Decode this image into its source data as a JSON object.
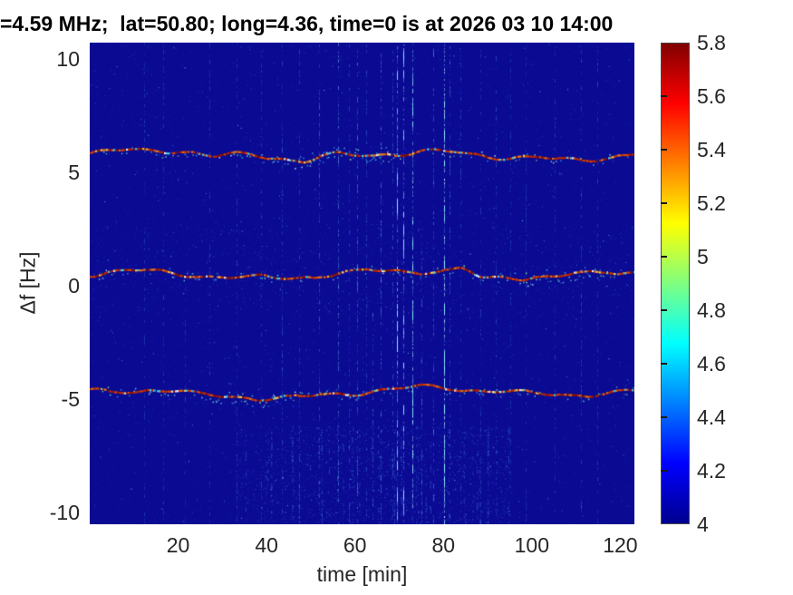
{
  "chart_data": {
    "type": "heatmap",
    "subtype": "doppler-spectrogram",
    "title": "=4.59 MHz;  lat=50.80; long=4.36, time=0 is at 2026 03 10 14:00",
    "xlabel": "time [min]",
    "ylabel": "Δf [Hz]",
    "x_range_min": [
      0,
      123.2
    ],
    "y_range_hz": [
      -10.5,
      10.7
    ],
    "x_ticks": [
      20,
      40,
      60,
      80,
      100,
      120
    ],
    "y_ticks": [
      10,
      5,
      0,
      -5,
      -10
    ],
    "grid": false,
    "background_value": 4.0,
    "background_color": "#0a0a93",
    "colorbar": {
      "position": "right",
      "min": 4,
      "max": 5.8,
      "ticks": [
        5.8,
        5.6,
        5.4,
        5.2,
        5,
        4.8,
        4.6,
        4.4,
        4.2,
        4
      ],
      "colormap": "jet"
    },
    "traces": [
      {
        "name": "upper-doppler-trace",
        "delta_f_hz": 5.76,
        "value_range": [
          5.2,
          5.8
        ],
        "wiggle_hz": 0.18,
        "seed": 11,
        "messy_zones_min": [
          [
            46,
            70
          ]
        ],
        "dips": [
          {
            "t": 27,
            "w": 9,
            "d": -0.28
          },
          {
            "t": 48,
            "w": 7,
            "d": -0.2
          }
        ]
      },
      {
        "name": "middle-doppler-trace",
        "delta_f_hz": 0.5,
        "value_range": [
          5.2,
          5.8
        ],
        "wiggle_hz": 0.17,
        "seed": 22,
        "messy_zones_min": [
          [
            92,
            116
          ]
        ],
        "dips": [
          {
            "t": 84,
            "w": 5,
            "d": 0.22
          },
          {
            "t": 89,
            "w": 5,
            "d": -0.15
          }
        ]
      },
      {
        "name": "lower-doppler-trace",
        "delta_f_hz": -4.72,
        "value_range": [
          5.2,
          5.8
        ],
        "wiggle_hz": 0.16,
        "seed": 33,
        "messy_zones_min": [
          [
            26,
            42
          ]
        ],
        "dips": [
          {
            "t": 16,
            "w": 10,
            "d": 0.15
          }
        ]
      }
    ],
    "rfi_streaks_min": [
      {
        "t": 12.4,
        "i": 0.22
      },
      {
        "t": 16.7,
        "i": 0.18
      },
      {
        "t": 21.6,
        "i": 0.2,
        "y0": 0.5
      },
      {
        "t": 27.0,
        "i": 0.22
      },
      {
        "t": 33.3,
        "i": 0.28
      },
      {
        "t": 38.7,
        "i": 0.24
      },
      {
        "t": 43.4,
        "i": 0.28
      },
      {
        "t": 47.3,
        "i": 0.24
      },
      {
        "t": 51.8,
        "i": 0.42
      },
      {
        "t": 56.1,
        "i": 0.55
      },
      {
        "t": 58.6,
        "i": 0.3
      },
      {
        "t": 60.4,
        "i": 0.5
      },
      {
        "t": 62.5,
        "i": 0.3
      },
      {
        "t": 64.0,
        "i": 0.45,
        "y0": 0.55
      },
      {
        "t": 65.7,
        "i": 0.5
      },
      {
        "t": 68.4,
        "i": 0.35
      },
      {
        "t": 69.4,
        "i": 0.7
      },
      {
        "t": 70.9,
        "i": 0.75
      },
      {
        "t": 72.9,
        "i": 0.85
      },
      {
        "t": 75.0,
        "i": 0.5,
        "y0": 0.4
      },
      {
        "t": 77.6,
        "i": 0.45
      },
      {
        "t": 80.1,
        "i": 1.0
      },
      {
        "t": 81.3,
        "i": 0.4
      },
      {
        "t": 83.8,
        "i": 0.25
      },
      {
        "t": 88.3,
        "i": 0.22
      },
      {
        "t": 91.8,
        "i": 0.28
      },
      {
        "t": 95.1,
        "i": 0.22
      },
      {
        "t": 98.6,
        "i": 0.2
      },
      {
        "t": 105.1,
        "i": 0.22
      },
      {
        "t": 111.1,
        "i": 0.28
      },
      {
        "t": 114.8,
        "i": 0.22
      }
    ],
    "noise": {
      "base_dots": 5200,
      "bottom_band_dots": 2800,
      "bottom_band_y_hz": [
        -10.5,
        -6.2
      ],
      "bottom_band_x_min": [
        33,
        95
      ],
      "mid_band_dots": 1200,
      "mid_band_y_hz": [
        -1.2,
        2.6
      ],
      "bottom_streaklets": 42,
      "seed": 7
    }
  }
}
